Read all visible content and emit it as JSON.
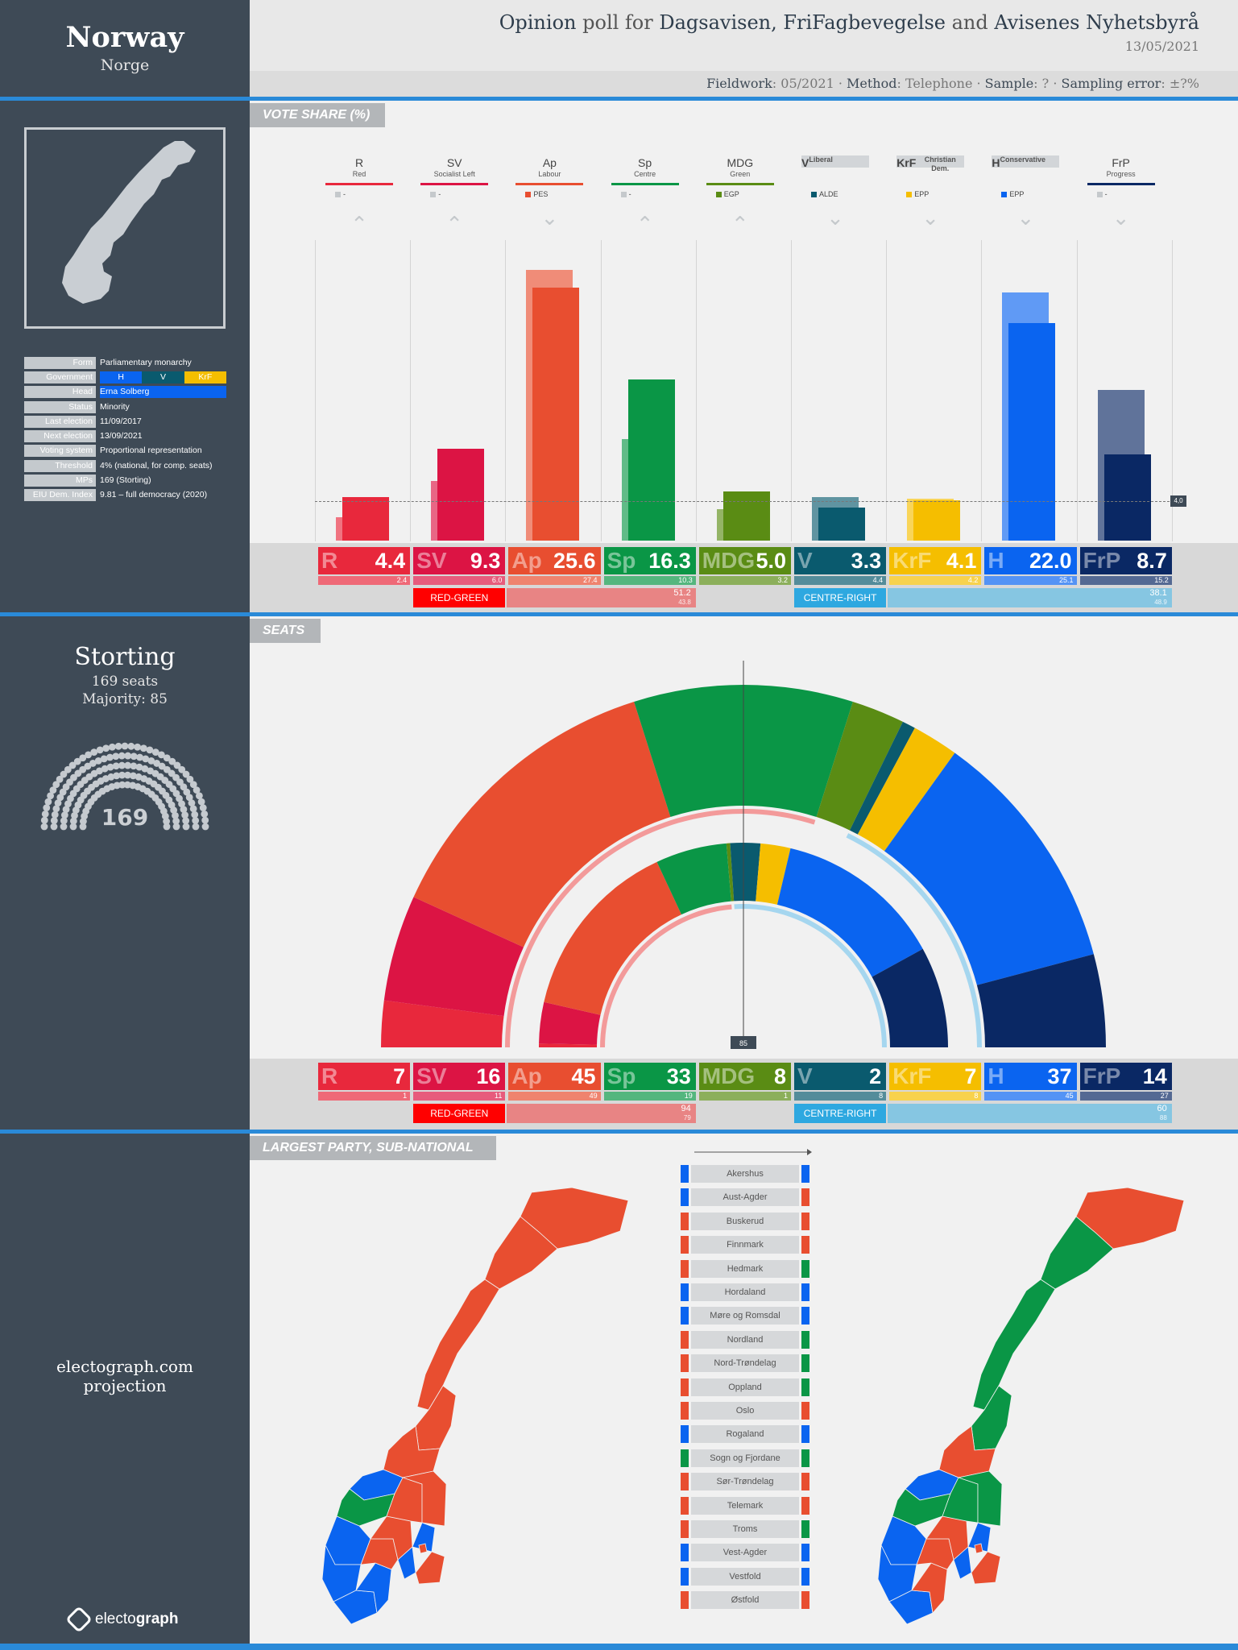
{
  "country": {
    "name": "Norway",
    "native": "Norge"
  },
  "header": {
    "title_1": "Opinion",
    "title_2": "poll for",
    "title_3": "Dagsavisen, FriFagbevegelse",
    "title_4": "and",
    "title_5": "Avisenes Nyhetsbyrå",
    "date": "13/05/2021",
    "fieldwork_k": "Fieldwork",
    "fieldwork_v": "05/2021",
    "method_k": "Method",
    "method_v": "Telephone",
    "sample_k": "Sample",
    "sample_v": "?",
    "error_k": "Sampling error",
    "error_v": "±?%"
  },
  "info": [
    {
      "k": "Form",
      "v": "Parliamentary  monarchy"
    },
    {
      "k": "Government",
      "gov": [
        "H",
        "V",
        "KrF"
      ]
    },
    {
      "k": "Head",
      "v": "Erna Solberg"
    },
    {
      "k": "Status",
      "v": "Minority"
    },
    {
      "k": "Last election",
      "v": "11/09/2017"
    },
    {
      "k": "Next election",
      "v": "13/09/2021"
    },
    {
      "k": "Voting system",
      "v": "Proportional  representation"
    },
    {
      "k": "Threshold",
      "v": "4% (national,  for comp. seats)"
    },
    {
      "k": "MPs",
      "v": "169 (Storting)"
    },
    {
      "k": "EIU Dem. Index",
      "v": "9.81 – full democracy (2020)"
    }
  ],
  "sections": {
    "vote": "VOTE SHARE (%)",
    "seats": "SEATS",
    "subnational": "LARGEST PARTY, SUB-NATIONAL"
  },
  "storting": {
    "name": "Storting",
    "seats_text": "169 seats",
    "majority_text": "Majority: 85",
    "total": "169"
  },
  "footer": {
    "site": "electograph.com",
    "kind": "projection",
    "brand_1": "electo",
    "brand_2": "graph"
  },
  "colors": {
    "R": "#e8283c",
    "SV": "#dc1444",
    "Ap": "#e84e30",
    "Sp": "#0a9646",
    "MDG": "#5a8c14",
    "V": "#0a5a6e",
    "KrF": "#f5be00",
    "H": "#0a64f0",
    "FrP": "#0a2864",
    "redgreen": "#ff0000",
    "centreright": "#2ea8e0"
  },
  "chart_data": [
    {
      "type": "bar",
      "title": "VOTE SHARE (%)",
      "categories": [
        "R",
        "SV",
        "Ap",
        "Sp",
        "MDG",
        "V",
        "KrF",
        "H",
        "FrP"
      ],
      "names": [
        "Red",
        "Socialist Left",
        "Labour",
        "Centre",
        "Green",
        "Liberal",
        "Christian Dem.",
        "Conservative",
        "Progress"
      ],
      "european": [
        "-",
        "-",
        "PES",
        "-",
        "EGP",
        "ALDE",
        "EPP",
        "EPP",
        "-"
      ],
      "trend": [
        "up",
        "up",
        "down",
        "up",
        "up",
        "down",
        "down",
        "down",
        "down"
      ],
      "government": [
        false,
        false,
        false,
        false,
        false,
        true,
        true,
        true,
        false
      ],
      "series": [
        {
          "name": "poll",
          "values": [
            4.4,
            9.3,
            25.6,
            16.3,
            5.0,
            3.3,
            4.1,
            22.0,
            8.7
          ]
        },
        {
          "name": "previous",
          "values": [
            2.4,
            6.0,
            27.4,
            10.3,
            3.2,
            4.4,
            4.2,
            25.1,
            15.2
          ]
        }
      ],
      "threshold": 4.0,
      "threshold_label": "4,0",
      "blocs": [
        {
          "name": "RED-GREEN",
          "value": "51.2",
          "previous": "43.8"
        },
        {
          "name": "CENTRE-RIGHT",
          "value": "38.1",
          "previous": "48.9"
        }
      ]
    },
    {
      "type": "pie",
      "title": "SEATS",
      "categories": [
        "R",
        "SV",
        "Ap",
        "Sp",
        "MDG",
        "V",
        "KrF",
        "H",
        "FrP"
      ],
      "series": [
        {
          "name": "projection",
          "values": [
            7,
            16,
            45,
            33,
            8,
            2,
            7,
            37,
            14
          ]
        },
        {
          "name": "previous",
          "values": [
            1,
            11,
            49,
            19,
            1,
            8,
            8,
            45,
            27
          ]
        }
      ],
      "majority": 85,
      "majority_label": "85",
      "blocs": [
        {
          "name": "RED-GREEN",
          "value": "94",
          "previous": "79"
        },
        {
          "name": "CENTRE-RIGHT",
          "value": "60",
          "previous": "88"
        }
      ]
    }
  ],
  "regions": [
    {
      "name": "Akershus",
      "prev": "H",
      "now": "H"
    },
    {
      "name": "Aust-Agder",
      "prev": "H",
      "now": "Ap"
    },
    {
      "name": "Buskerud",
      "prev": "Ap",
      "now": "Ap"
    },
    {
      "name": "Finnmark",
      "prev": "Ap",
      "now": "Ap"
    },
    {
      "name": "Hedmark",
      "prev": "Ap",
      "now": "Sp"
    },
    {
      "name": "Hordaland",
      "prev": "H",
      "now": "H"
    },
    {
      "name": "Møre og Romsdal",
      "prev": "H",
      "now": "H"
    },
    {
      "name": "Nordland",
      "prev": "Ap",
      "now": "Sp"
    },
    {
      "name": "Nord-Trøndelag",
      "prev": "Ap",
      "now": "Sp"
    },
    {
      "name": "Oppland",
      "prev": "Ap",
      "now": "Sp"
    },
    {
      "name": "Oslo",
      "prev": "Ap",
      "now": "Ap"
    },
    {
      "name": "Rogaland",
      "prev": "H",
      "now": "H"
    },
    {
      "name": "Sogn og Fjordane",
      "prev": "Sp",
      "now": "Sp"
    },
    {
      "name": "Sør-Trøndelag",
      "prev": "Ap",
      "now": "Ap"
    },
    {
      "name": "Telemark",
      "prev": "Ap",
      "now": "Ap"
    },
    {
      "name": "Troms",
      "prev": "Ap",
      "now": "Sp"
    },
    {
      "name": "Vest-Agder",
      "prev": "H",
      "now": "H"
    },
    {
      "name": "Vestfold",
      "prev": "H",
      "now": "H"
    },
    {
      "name": "Østfold",
      "prev": "Ap",
      "now": "Ap"
    }
  ]
}
